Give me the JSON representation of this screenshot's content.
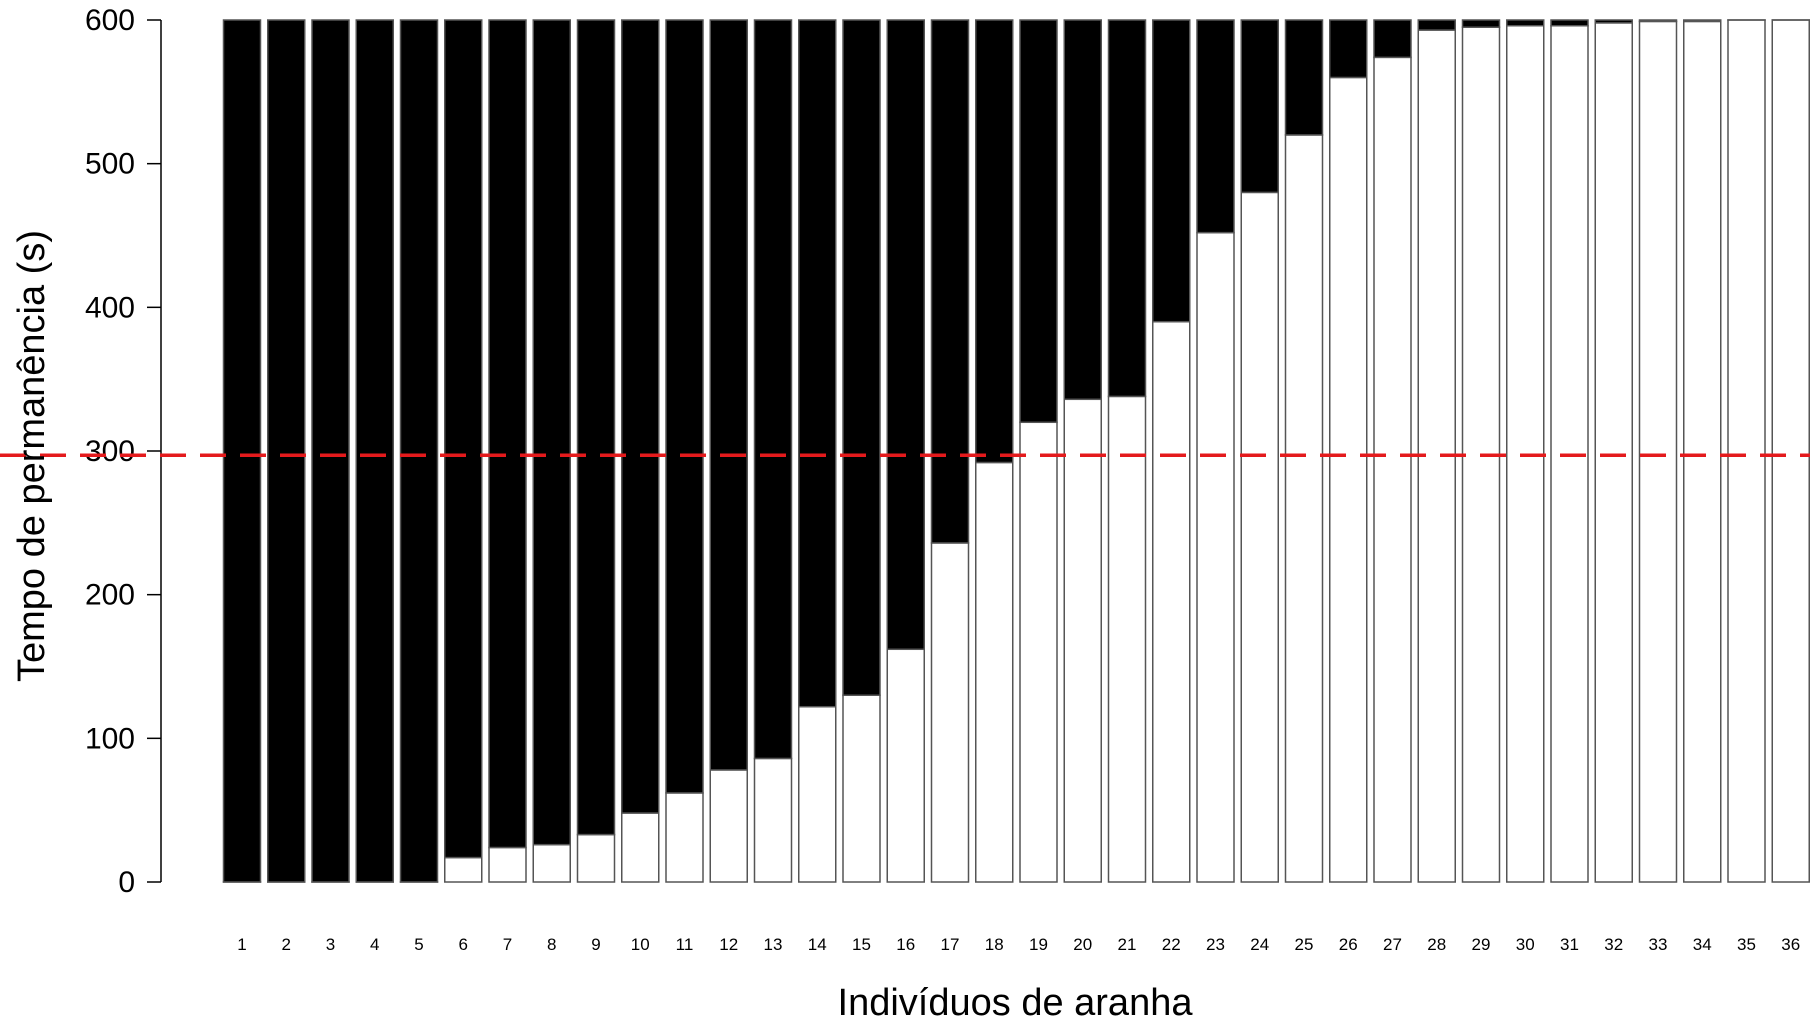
{
  "chart_data": {
    "type": "bar",
    "stacked": true,
    "xlabel": "Indivíduos de aranha",
    "ylabel": "Tempo de permanência (s)",
    "ylim": [
      0,
      600
    ],
    "yticks": [
      0,
      100,
      200,
      300,
      400,
      500,
      600
    ],
    "categories": [
      "1",
      "2",
      "3",
      "4",
      "5",
      "6",
      "7",
      "8",
      "9",
      "10",
      "11",
      "12",
      "13",
      "14",
      "15",
      "16",
      "17",
      "18",
      "19",
      "20",
      "21",
      "22",
      "23",
      "24",
      "25",
      "26",
      "27",
      "28",
      "29",
      "30",
      "31",
      "32",
      "33",
      "34",
      "35",
      "36"
    ],
    "series": [
      {
        "color": "#ffffff",
        "values": [
          0,
          0,
          0,
          0,
          0,
          17,
          24,
          26,
          33,
          48,
          62,
          78,
          86,
          122,
          130,
          162,
          236,
          292,
          320,
          336,
          338,
          390,
          452,
          480,
          520,
          560,
          574,
          593,
          595,
          596,
          596,
          598,
          599,
          599,
          600,
          600
        ]
      },
      {
        "color": "#000000",
        "values": [
          600,
          600,
          600,
          600,
          600,
          583,
          576,
          574,
          567,
          552,
          538,
          522,
          514,
          478,
          470,
          438,
          364,
          308,
          280,
          264,
          262,
          210,
          148,
          120,
          80,
          40,
          26,
          7,
          5,
          4,
          4,
          2,
          1,
          1,
          0,
          0
        ]
      }
    ],
    "reference_line": {
      "y": 297,
      "color": "#e41a1c",
      "style": "dashed"
    },
    "grid": false
  }
}
